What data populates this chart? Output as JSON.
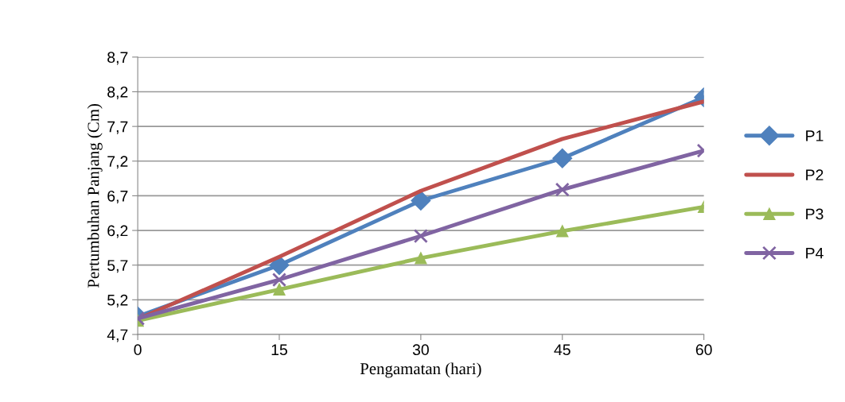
{
  "chart_data": {
    "type": "line",
    "xlabel": "Pengamatan (hari)",
    "ylabel": "Pertumbuhan Panjang (Cm)",
    "categories": [
      "0",
      "15",
      "30",
      "45",
      "60"
    ],
    "series": [
      {
        "name": "P1",
        "color": "#4f81bd",
        "marker": "diamond",
        "values": [
          4.96,
          5.7,
          6.63,
          7.24,
          8.12
        ]
      },
      {
        "name": "P2",
        "color": "#c0504d",
        "marker": "none",
        "values": [
          4.92,
          5.82,
          6.77,
          7.52,
          8.06
        ]
      },
      {
        "name": "P3",
        "color": "#9bbb59",
        "marker": "triangle",
        "values": [
          4.9,
          5.35,
          5.8,
          6.19,
          6.54
        ]
      },
      {
        "name": "P4",
        "color": "#8064a2",
        "marker": "cross",
        "values": [
          4.93,
          5.49,
          6.12,
          6.79,
          7.35
        ]
      }
    ],
    "ylim": [
      4.7,
      8.7
    ],
    "yticks": [
      {
        "value": 4.7,
        "label": "4,7"
      },
      {
        "value": 5.2,
        "label": "5,2"
      },
      {
        "value": 5.7,
        "label": "5,7"
      },
      {
        "value": 6.2,
        "label": "6,2"
      },
      {
        "value": 6.7,
        "label": "6,7"
      },
      {
        "value": 7.2,
        "label": "7,2"
      },
      {
        "value": 7.7,
        "label": "7,7"
      },
      {
        "value": 8.2,
        "label": "8,2"
      },
      {
        "value": 8.7,
        "label": "8,7"
      }
    ],
    "grid": "y",
    "legend": "right",
    "line_style": "solid"
  }
}
